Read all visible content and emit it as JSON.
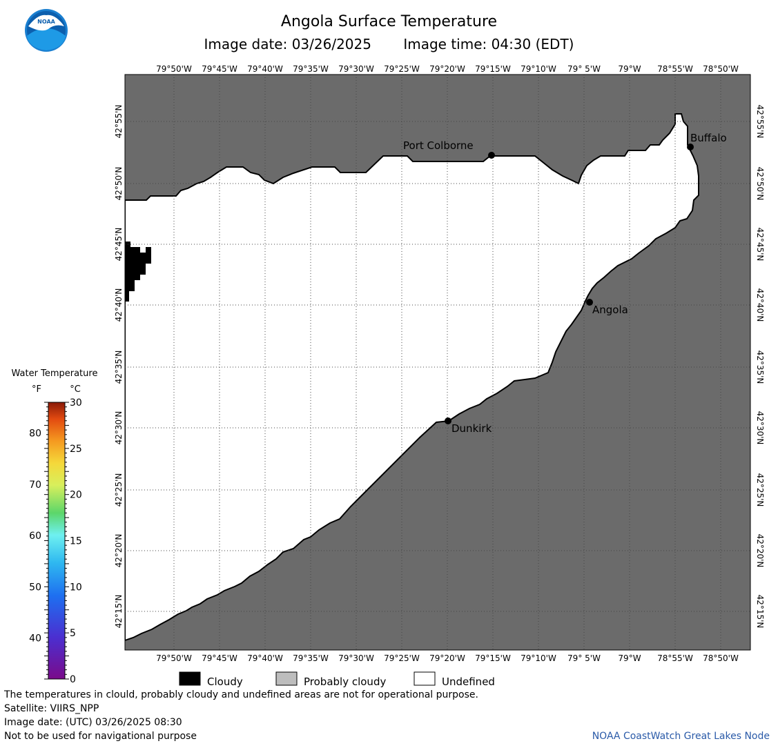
{
  "header": {
    "title": "Angola Surface Temperature",
    "image_date_label": "Image date: 03/26/2025",
    "image_time_label": "Image time: 04:30 (EDT)"
  },
  "map": {
    "land_color": "#6b6b6b",
    "water_color": "#ffffff",
    "cloud_color": "#000000",
    "lon_labels": [
      "79°50'W",
      "79°45'W",
      "79°40'W",
      "79°35'W",
      "79°30'W",
      "79°25'W",
      "79°20'W",
      "79°15'W",
      "79°10'W",
      "79° 5'W",
      "79°W",
      "78°55'W",
      "78°50'W"
    ],
    "lat_labels": [
      "42°55'N",
      "42°50'N",
      "42°45'N",
      "42°40'N",
      "42°35'N",
      "42°30'N",
      "42°25'N",
      "42°20'N",
      "42°15'N"
    ],
    "cities": [
      {
        "name": "Port Colborne"
      },
      {
        "name": "Buffalo"
      },
      {
        "name": "Angola"
      },
      {
        "name": "Dunkirk"
      }
    ]
  },
  "colorbar": {
    "title": "Water Temperature",
    "unit_f": "°F",
    "unit_c": "°C",
    "f_ticks": [
      "80",
      "70",
      "60",
      "50",
      "40"
    ],
    "c_ticks": [
      "30",
      "25",
      "20",
      "15",
      "10",
      "5",
      "0"
    ]
  },
  "legend": {
    "items": [
      {
        "label": "Cloudy",
        "color": "#000000"
      },
      {
        "label": "Probably cloudy",
        "color": "#bdbdbd"
      },
      {
        "label": "Undefined",
        "color": "#ffffff"
      }
    ]
  },
  "footer": {
    "disclaimer": "The temperatures in clould, probably cloudy and undefined areas are not for operational purpose.",
    "satellite": "Satellite: VIIRS_NPP",
    "utc_date": "Image date: (UTC) 03/26/2025  08:30",
    "nav_warning": "Not to be used for navigational purpose",
    "credit": "NOAA CoastWatch Great Lakes Node"
  },
  "logo": {
    "text": "NOAA"
  }
}
